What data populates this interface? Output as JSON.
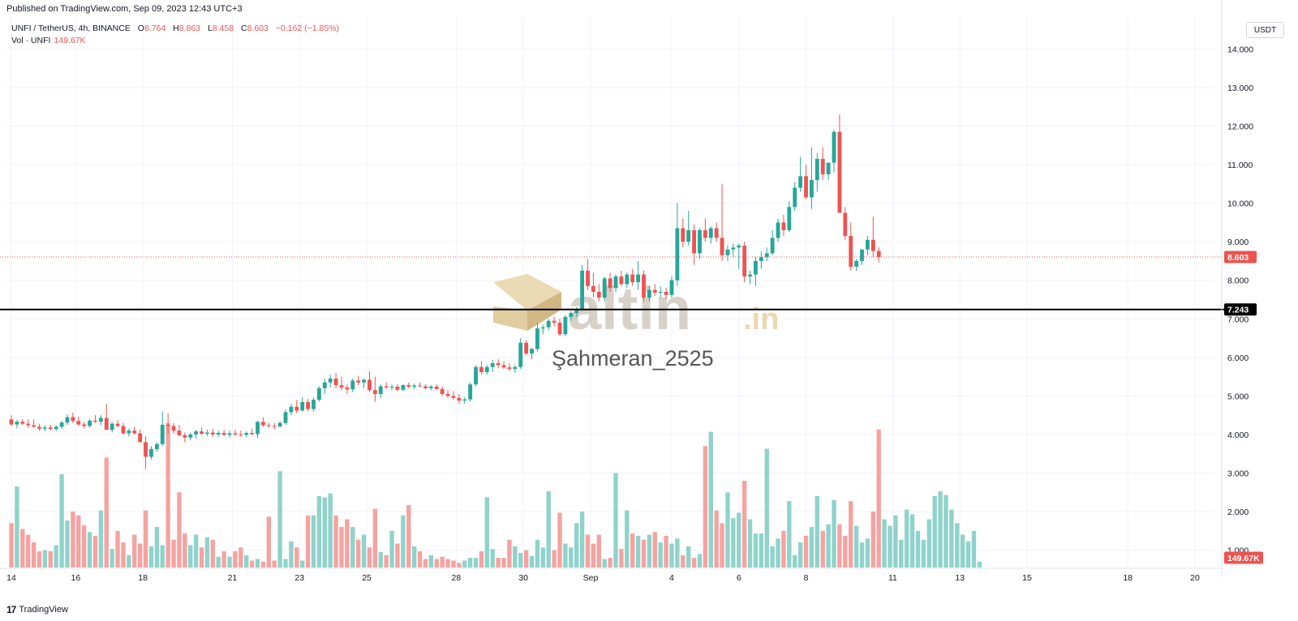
{
  "header": {
    "published": "Published on TradingView.com, Sep 09, 2023 12:43 UTC+3",
    "symbol": "UNFI / TetherUS, 4h, BINANCE",
    "open_label": "O",
    "open": "8.764",
    "high_label": "H",
    "high": "8.863",
    "low_label": "L",
    "low": "8.458",
    "close_label": "C",
    "close": "8.603",
    "change": "−0.162 (−1.85%)",
    "volume_label": "Vol · UNFI",
    "volume_value": "149.67K"
  },
  "currency_button": "USDT",
  "footer": {
    "logo": "17",
    "brand": "TradingView"
  },
  "watermark": {
    "brand": "altin",
    "tld": ".in",
    "user": "Şahmeran_2525"
  },
  "colors": {
    "up": "#26a69a",
    "down": "#ef5350",
    "vol_up": "#8fd3cb",
    "vol_down": "#f5a3a0",
    "level_line": "#000000"
  },
  "chart_data": {
    "type": "candlestick",
    "title": "UNFI / TetherUS, 4h, BINANCE",
    "price_axis": {
      "ylim": [
        0.55,
        14.85
      ],
      "ticks": [
        "1.000",
        "2.000",
        "3.000",
        "4.000",
        "5.000",
        "6.000",
        "7.000",
        "8.000",
        "9.000",
        "10.000",
        "11.000",
        "12.000",
        "13.000",
        "14.000"
      ],
      "tick_values": [
        1,
        2,
        3,
        4,
        5,
        6,
        7,
        8,
        9,
        10,
        11,
        12,
        13,
        14
      ]
    },
    "time_axis": {
      "labels": [
        "14",
        "16",
        "18",
        "21",
        "23",
        "25",
        "28",
        "30",
        "Sep",
        "4",
        "6",
        "8",
        "11",
        "13",
        "15",
        "18",
        "20"
      ],
      "label_bar_index": [
        0,
        11.5,
        23.5,
        39.5,
        51.5,
        63.5,
        79.5,
        91.5,
        103.5,
        118,
        130,
        142,
        157.5,
        169.5,
        181.5,
        199.5,
        211.5
      ],
      "bar_span": 216
    },
    "horizontal_level": {
      "value": 7.243,
      "label": "7.243"
    },
    "last_price": {
      "value": 8.603,
      "label": "8.603"
    },
    "last_volume_label": "149.67K",
    "candles": [
      [
        4.39,
        4.5,
        4.22,
        4.26
      ],
      [
        4.26,
        4.38,
        4.16,
        4.33
      ],
      [
        4.33,
        4.4,
        4.24,
        4.28
      ],
      [
        4.28,
        4.39,
        4.17,
        4.24
      ],
      [
        4.24,
        4.39,
        4.18,
        4.2
      ],
      [
        4.2,
        4.28,
        4.1,
        4.15
      ],
      [
        4.15,
        4.24,
        4.08,
        4.18
      ],
      [
        4.18,
        4.25,
        4.11,
        4.14
      ],
      [
        4.14,
        4.24,
        4.08,
        4.2
      ],
      [
        4.2,
        4.35,
        4.15,
        4.31
      ],
      [
        4.31,
        4.52,
        4.25,
        4.45
      ],
      [
        4.45,
        4.57,
        4.3,
        4.35
      ],
      [
        4.35,
        4.46,
        4.22,
        4.26
      ],
      [
        4.26,
        4.33,
        4.15,
        4.22
      ],
      [
        4.22,
        4.4,
        4.18,
        4.36
      ],
      [
        4.36,
        4.5,
        4.3,
        4.33
      ],
      [
        4.33,
        4.5,
        4.24,
        4.43
      ],
      [
        4.43,
        4.8,
        4.2,
        4.12
      ],
      [
        4.12,
        4.33,
        4.05,
        4.28
      ],
      [
        4.28,
        4.38,
        4.18,
        4.22
      ],
      [
        4.22,
        4.3,
        4.0,
        4.03
      ],
      [
        4.03,
        4.15,
        3.95,
        4.1
      ],
      [
        4.1,
        4.2,
        4.0,
        4.03
      ],
      [
        4.03,
        4.13,
        3.8,
        3.8
      ],
      [
        3.8,
        3.95,
        3.1,
        3.42
      ],
      [
        3.42,
        3.7,
        3.35,
        3.62
      ],
      [
        3.62,
        3.8,
        3.55,
        3.75
      ],
      [
        3.75,
        4.6,
        3.7,
        4.25
      ],
      [
        4.25,
        4.55,
        4.02,
        4.22
      ],
      [
        4.22,
        4.3,
        4.03,
        4.1
      ],
      [
        4.1,
        4.25,
        3.95,
        3.98
      ],
      [
        3.98,
        4.05,
        3.8,
        3.92
      ],
      [
        3.92,
        4.05,
        3.85,
        4.0
      ],
      [
        4.0,
        4.12,
        3.9,
        4.08
      ],
      [
        4.08,
        4.18,
        3.98,
        4.02
      ],
      [
        4.02,
        4.13,
        3.96,
        4.05
      ],
      [
        4.05,
        4.15,
        3.95,
        4.0
      ],
      [
        4.0,
        4.1,
        3.93,
        4.04
      ],
      [
        4.04,
        4.12,
        3.97,
        3.99
      ],
      [
        3.99,
        4.1,
        3.92,
        4.03
      ],
      [
        4.03,
        4.12,
        3.96,
        4.0
      ],
      [
        4.0,
        4.1,
        3.94,
        3.99
      ],
      [
        3.99,
        4.08,
        3.93,
        4.04
      ],
      [
        4.04,
        4.15,
        3.98,
        4.01
      ],
      [
        4.01,
        4.35,
        3.9,
        4.33
      ],
      [
        4.33,
        4.45,
        4.2,
        4.24
      ],
      [
        4.24,
        4.3,
        4.17,
        4.22
      ],
      [
        4.22,
        4.3,
        4.14,
        4.21
      ],
      [
        4.21,
        4.35,
        4.18,
        4.3
      ],
      [
        4.3,
        4.65,
        4.25,
        4.58
      ],
      [
        4.58,
        4.8,
        4.5,
        4.72
      ],
      [
        4.72,
        4.9,
        4.55,
        4.62
      ],
      [
        4.62,
        4.97,
        4.6,
        4.84
      ],
      [
        4.84,
        4.92,
        4.6,
        4.66
      ],
      [
        4.66,
        4.95,
        4.6,
        4.9
      ],
      [
        4.9,
        5.25,
        4.85,
        5.2
      ],
      [
        5.2,
        5.45,
        5.05,
        5.35
      ],
      [
        5.35,
        5.55,
        5.22,
        5.45
      ],
      [
        5.45,
        5.6,
        5.2,
        5.28
      ],
      [
        5.28,
        5.5,
        5.15,
        5.22
      ],
      [
        5.22,
        5.3,
        5.05,
        5.17
      ],
      [
        5.17,
        5.45,
        5.1,
        5.4
      ],
      [
        5.4,
        5.52,
        5.28,
        5.35
      ],
      [
        5.35,
        5.45,
        5.2,
        5.42
      ],
      [
        5.42,
        5.65,
        5.1,
        5.15
      ],
      [
        5.15,
        5.5,
        4.85,
        5.05
      ],
      [
        5.05,
        5.3,
        4.95,
        5.25
      ],
      [
        5.25,
        5.35,
        5.18,
        5.22
      ],
      [
        5.22,
        5.3,
        5.15,
        5.24
      ],
      [
        5.24,
        5.31,
        5.12,
        5.16
      ],
      [
        5.16,
        5.3,
        5.12,
        5.28
      ],
      [
        5.28,
        5.35,
        5.2,
        5.24
      ],
      [
        5.24,
        5.32,
        5.18,
        5.27
      ],
      [
        5.27,
        5.35,
        5.22,
        5.25
      ],
      [
        5.25,
        5.3,
        5.18,
        5.2
      ],
      [
        5.2,
        5.28,
        5.15,
        5.24
      ],
      [
        5.24,
        5.3,
        5.16,
        5.18
      ],
      [
        5.18,
        5.25,
        5.0,
        5.05
      ],
      [
        5.05,
        5.15,
        4.95,
        5.0
      ],
      [
        5.0,
        5.12,
        4.9,
        4.95
      ],
      [
        4.95,
        5.05,
        4.8,
        4.88
      ],
      [
        4.88,
        4.97,
        4.8,
        4.91
      ],
      [
        4.91,
        5.35,
        4.85,
        5.3
      ],
      [
        5.3,
        5.8,
        5.25,
        5.75
      ],
      [
        5.75,
        5.9,
        5.55,
        5.62
      ],
      [
        5.62,
        5.8,
        5.55,
        5.75
      ],
      [
        5.75,
        5.93,
        5.62,
        5.85
      ],
      [
        5.85,
        5.95,
        5.72,
        5.8
      ],
      [
        5.8,
        5.9,
        5.7,
        5.74
      ],
      [
        5.74,
        5.85,
        5.65,
        5.7
      ],
      [
        5.7,
        5.8,
        5.6,
        5.75
      ],
      [
        5.75,
        6.5,
        5.7,
        6.38
      ],
      [
        6.38,
        6.45,
        6.05,
        6.1
      ],
      [
        6.1,
        6.25,
        5.95,
        6.22
      ],
      [
        6.22,
        6.9,
        6.15,
        6.75
      ],
      [
        6.75,
        6.85,
        6.6,
        6.78
      ],
      [
        6.78,
        7.0,
        6.7,
        6.95
      ],
      [
        6.95,
        7.05,
        6.8,
        6.9
      ],
      [
        6.9,
        7.0,
        6.55,
        6.6
      ],
      [
        6.6,
        7.1,
        6.55,
        7.05
      ],
      [
        7.05,
        7.2,
        6.95,
        7.15
      ],
      [
        7.15,
        7.3,
        7.05,
        7.25
      ],
      [
        7.25,
        8.4,
        7.2,
        8.25
      ],
      [
        8.25,
        8.55,
        7.75,
        7.85
      ],
      [
        7.85,
        8.2,
        7.55,
        7.7
      ],
      [
        7.7,
        7.9,
        7.45,
        7.55
      ],
      [
        7.55,
        8.1,
        7.45,
        8.05
      ],
      [
        8.05,
        8.2,
        7.7,
        7.8
      ],
      [
        7.8,
        8.15,
        7.7,
        8.1
      ],
      [
        8.1,
        8.25,
        7.85,
        7.9
      ],
      [
        7.9,
        8.2,
        7.8,
        8.15
      ],
      [
        8.15,
        8.3,
        7.85,
        7.95
      ],
      [
        7.95,
        8.5,
        7.75,
        8.15
      ],
      [
        8.15,
        8.25,
        7.45,
        7.55
      ],
      [
        7.55,
        7.85,
        7.45,
        7.75
      ],
      [
        7.75,
        7.9,
        7.6,
        7.68
      ],
      [
        7.68,
        7.85,
        7.55,
        7.7
      ],
      [
        7.7,
        7.8,
        7.5,
        7.62
      ],
      [
        7.62,
        8.1,
        7.55,
        8.0
      ],
      [
        8.0,
        10.0,
        7.85,
        9.35
      ],
      [
        9.35,
        9.6,
        8.85,
        9.0
      ],
      [
        9.0,
        9.8,
        8.9,
        9.3
      ],
      [
        9.3,
        9.45,
        8.4,
        8.7
      ],
      [
        8.7,
        9.35,
        8.55,
        9.3
      ],
      [
        9.3,
        9.6,
        9.0,
        9.1
      ],
      [
        9.1,
        9.4,
        8.95,
        9.35
      ],
      [
        9.35,
        9.5,
        9.0,
        9.1
      ],
      [
        9.1,
        10.5,
        8.5,
        8.65
      ],
      [
        8.65,
        8.9,
        8.5,
        8.8
      ],
      [
        8.8,
        8.95,
        8.6,
        8.85
      ],
      [
        8.85,
        8.95,
        8.3,
        8.9
      ],
      [
        8.9,
        9.0,
        7.95,
        8.1
      ],
      [
        8.1,
        8.25,
        7.9,
        8.15
      ],
      [
        8.15,
        8.6,
        7.85,
        8.5
      ],
      [
        8.5,
        8.75,
        8.3,
        8.6
      ],
      [
        8.6,
        8.85,
        8.5,
        8.7
      ],
      [
        8.7,
        9.3,
        8.65,
        9.1
      ],
      [
        9.1,
        9.6,
        9.0,
        9.5
      ],
      [
        9.5,
        9.7,
        9.15,
        9.3
      ],
      [
        9.3,
        10.05,
        9.25,
        9.9
      ],
      [
        9.9,
        10.55,
        9.8,
        10.4
      ],
      [
        10.4,
        11.2,
        10.3,
        10.7
      ],
      [
        10.7,
        11.0,
        10.1,
        10.15
      ],
      [
        10.15,
        11.45,
        9.85,
        10.6
      ],
      [
        10.6,
        11.3,
        10.3,
        11.15
      ],
      [
        11.15,
        11.45,
        10.6,
        10.75
      ],
      [
        10.75,
        11.05,
        10.6,
        11.05
      ],
      [
        11.05,
        11.9,
        10.8,
        11.85
      ],
      [
        11.85,
        12.3,
        9.8,
        9.75
      ],
      [
        9.75,
        9.9,
        9.05,
        9.15
      ],
      [
        9.15,
        9.5,
        8.25,
        8.35
      ],
      [
        8.35,
        8.55,
        8.25,
        8.5
      ],
      [
        8.5,
        8.8,
        8.4,
        8.8
      ],
      [
        8.8,
        9.15,
        8.65,
        9.05
      ],
      [
        9.05,
        9.65,
        8.6,
        8.76
      ],
      [
        8.76,
        8.86,
        8.46,
        8.603
      ]
    ],
    "volume_axis_note": "volume shown in lower pane, scaled to same axis labels",
    "volume": [
      1.15,
      2.1,
      1.0,
      0.85,
      0.65,
      0.42,
      0.45,
      0.42,
      0.58,
      2.42,
      1.22,
      1.45,
      1.35,
      1.1,
      0.92,
      0.82,
      1.48,
      2.85,
      0.48,
      0.95,
      0.65,
      0.32,
      0.85,
      0.62,
      1.48,
      0.55,
      1.05,
      0.58,
      3.75,
      0.72,
      1.95,
      0.88,
      0.58,
      0.85,
      0.52,
      0.78,
      0.72,
      0.28,
      0.42,
      0.28,
      0.42,
      0.52,
      0.32,
      0.18,
      0.22,
      0.15,
      1.32,
      0.18,
      2.5,
      0.22,
      0.68,
      0.52,
      0.18,
      1.35,
      1.35,
      1.85,
      1.82,
      1.92,
      1.35,
      1.05,
      1.25,
      1.05,
      0.72,
      0.85,
      0.52,
      1.52,
      0.4,
      0.32,
      0.95,
      0.62,
      1.35,
      1.62,
      0.55,
      0.42,
      0.22,
      0.32,
      0.22,
      0.28,
      0.22,
      0.18,
      0.12,
      0.18,
      0.25,
      0.25,
      0.42,
      1.82,
      0.48,
      0.25,
      0.25,
      0.72,
      0.55,
      0.38,
      0.45,
      0.3,
      0.72,
      0.52,
      1.98,
      0.45,
      1.42,
      0.62,
      0.52,
      1.15,
      1.45,
      0.85,
      0.62,
      0.85,
      0.22,
      0.25,
      2.45,
      0.48,
      1.48,
      0.88,
      0.82,
      0.72,
      0.85,
      0.92,
      0.65,
      0.82,
      0.62,
      0.75,
      0.32,
      0.55,
      0.25,
      0.35,
      3.15,
      3.52,
      1.48,
      1.15,
      1.95,
      1.28,
      1.42,
      2.25,
      1.25,
      0.88,
      0.88,
      3.08,
      0.55,
      0.75,
      0.95,
      1.72,
      0.32,
      0.65,
      0.82,
      1.05,
      1.85,
      0.95,
      1.12,
      1.75,
      1.12,
      0.82,
      1.72,
      1.08,
      0.65,
      0.75,
      1.45,
      3.58,
      1.25,
      1.08,
      1.35,
      0.72,
      1.5,
      1.38,
      0.95,
      0.72,
      1.25,
      1.85,
      1.98,
      1.88,
      1.5,
      1.15,
      0.85,
      0.68,
      0.95,
      0.15
    ]
  }
}
